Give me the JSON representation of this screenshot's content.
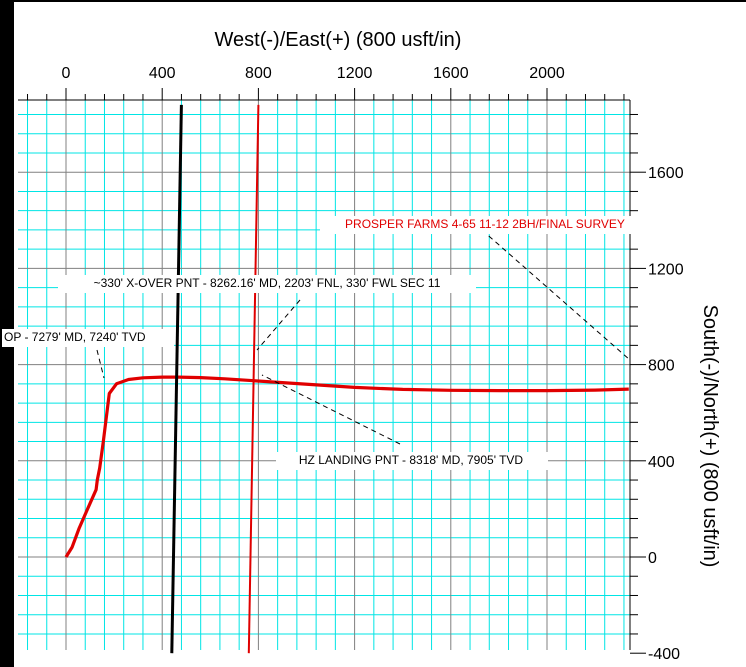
{
  "chart_data": {
    "type": "line",
    "title": "",
    "xlabel": "West(-)/East(+) (800 usft/in)",
    "ylabel": "South(-)/North(+) (800 usft/in)",
    "xlim": [
      -200,
      2360
    ],
    "ylim": [
      -400,
      1940
    ],
    "x_ticks": [
      "0",
      "400",
      "800",
      "1200",
      "1600",
      "2000"
    ],
    "x_tick_values": [
      0,
      400,
      800,
      1200,
      1600,
      2000
    ],
    "y_ticks": [
      "1600",
      "1200",
      "800",
      "400",
      "0",
      "-400"
    ],
    "y_tick_values": [
      1600,
      1200,
      800,
      400,
      0,
      -400
    ],
    "grid": true,
    "colors": {
      "grid_minor": "#00e5e5",
      "grid_major": "#808080",
      "wellpath": "#e00000",
      "lease_line_red": "#e00000",
      "lease_line_black": "#000000",
      "annotation": "#000000",
      "survey_label": "#e00000"
    },
    "series": [
      {
        "name": "",
        "color": "#e00000",
        "x": [
          0,
          25,
          55,
          90,
          125,
          130,
          140,
          155,
          165,
          180,
          210,
          260,
          320,
          400,
          470,
          560,
          660,
          780,
          900,
          1050,
          1200,
          1400,
          1600,
          1800,
          2000,
          2200,
          2340
        ],
        "y": [
          0,
          40,
          120,
          200,
          280,
          320,
          370,
          480,
          560,
          680,
          720,
          738,
          745,
          748,
          748,
          746,
          741,
          733,
          725,
          715,
          705,
          697,
          693,
          692,
          692,
          694,
          698
        ]
      },
      {
        "name": "",
        "color": "#000000",
        "x": [
          480,
          440
        ],
        "y": [
          1880,
          -400
        ]
      },
      {
        "name": "",
        "color": "#e00000",
        "x": [
          800,
          760
        ],
        "y": [
          1880,
          -400
        ]
      }
    ],
    "annotations": [
      {
        "text": "PROSPER FARMS 4-65 11-12 2BH/FINAL SURVEY",
        "color": "#e00000",
        "target": [
          2340,
          698
        ]
      },
      {
        "text": "~330' X-OVER PNT - 8262.16' MD, 2203' FNL, 330' FWL SEC 11",
        "color": "#000000",
        "target": [
          790,
          740
        ]
      },
      {
        "text": "OP - 7279' MD, 7240' TVD",
        "color": "#000000",
        "target": [
          165,
          690
        ]
      },
      {
        "text": "HZ LANDING PNT - 8318' MD, 7905' TVD",
        "color": "#000000",
        "target": [
          820,
          738
        ]
      }
    ]
  }
}
